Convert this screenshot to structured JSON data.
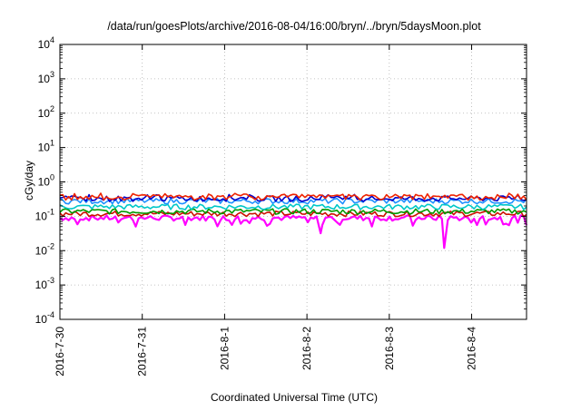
{
  "chart_data": {
    "type": "line",
    "title": "/data/run/goesPlots/archive/2016-08-04/16:00/bryn/../bryn/5daysMoon.plot",
    "xlabel": "Coordinated Universal Time (UTC)",
    "ylabel": "cGy/day",
    "yscale": "log",
    "ylim": [
      0.0001,
      10000
    ],
    "y_ticks": [
      {
        "value": 0.0001,
        "base": "10",
        "exp": "-4"
      },
      {
        "value": 0.001,
        "base": "10",
        "exp": "-3"
      },
      {
        "value": 0.01,
        "base": "10",
        "exp": "-2"
      },
      {
        "value": 0.1,
        "base": "10",
        "exp": "-1"
      },
      {
        "value": 1,
        "base": "10",
        "exp": "0"
      },
      {
        "value": 10,
        "base": "10",
        "exp": "1"
      },
      {
        "value": 100,
        "base": "10",
        "exp": "2"
      },
      {
        "value": 1000,
        "base": "10",
        "exp": "3"
      },
      {
        "value": 10000,
        "base": "10",
        "exp": "4"
      }
    ],
    "xlim": [
      "2016-07-30T00:00",
      "2016-08-04T16:00"
    ],
    "x_ticks": [
      "2016-7-30",
      "2016-7-31",
      "2016-8-1",
      "2016-8-2",
      "2016-8-3",
      "2016-8-4"
    ],
    "x_tick_dates": [
      "2016-07-30",
      "2016-07-31",
      "2016-08-01",
      "2016-08-02",
      "2016-08-03",
      "2016-08-04"
    ],
    "grid": true,
    "legend": "none",
    "series": [
      {
        "color": "#ff00ff",
        "approx_level": 0.09,
        "dips": [
          {
            "x": "2016-08-02T04:00",
            "y": 0.032
          },
          {
            "x": "2016-08-03T16:00",
            "y": 0.012
          }
        ]
      },
      {
        "color": "#cc1100",
        "approx_level": 0.12
      },
      {
        "color": "#009900",
        "approx_level": 0.14
      },
      {
        "color": "#00c8c8",
        "approx_level": 0.19
      },
      {
        "color": "#1e90ff",
        "approx_level": 0.28
      },
      {
        "color": "#0000cc",
        "approx_level": 0.33
      },
      {
        "color": "#ee2200",
        "approx_level": 0.36
      }
    ]
  }
}
